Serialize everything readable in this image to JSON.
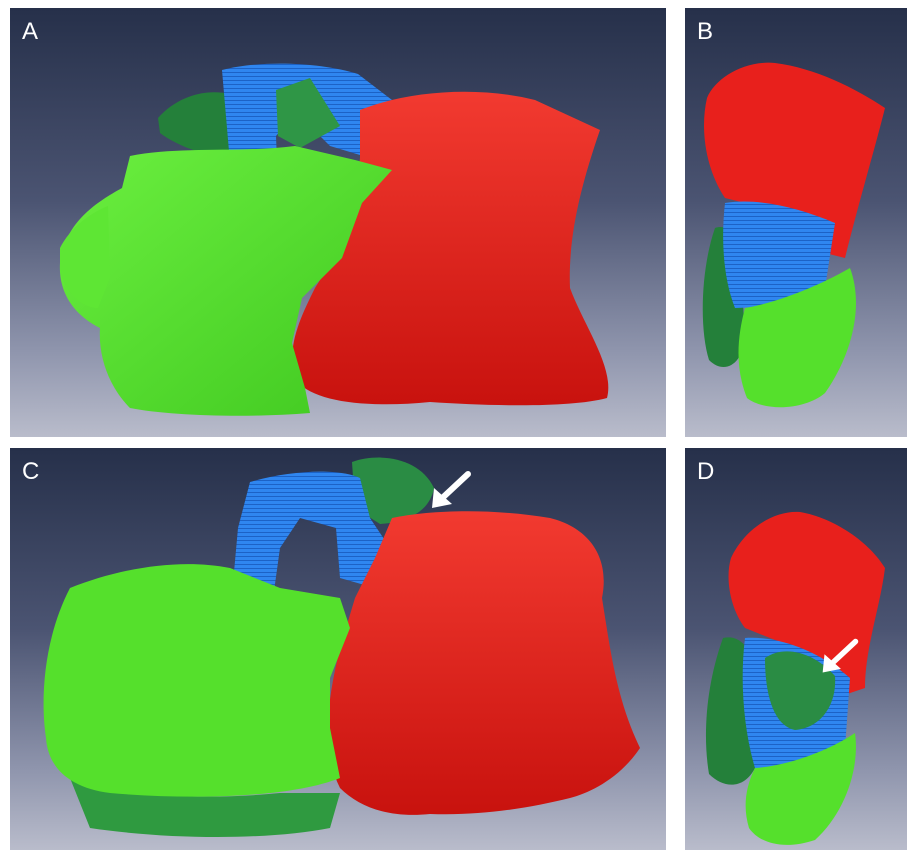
{
  "panels": [
    {
      "label": "A"
    },
    {
      "label": "B"
    },
    {
      "label": "C"
    },
    {
      "label": "D"
    }
  ],
  "colors": {
    "background_top": "#26304a",
    "background_bottom": "#b9bccb",
    "red_region": "#e8201c",
    "light_green_region": "#55e02c",
    "dark_green_region": "#24803a",
    "blue_region": "#2a7ee8",
    "arrow": "#ffffff"
  },
  "icons": {
    "panel_c_marker": "arrow-icon",
    "panel_d_marker": "arrow-icon"
  }
}
